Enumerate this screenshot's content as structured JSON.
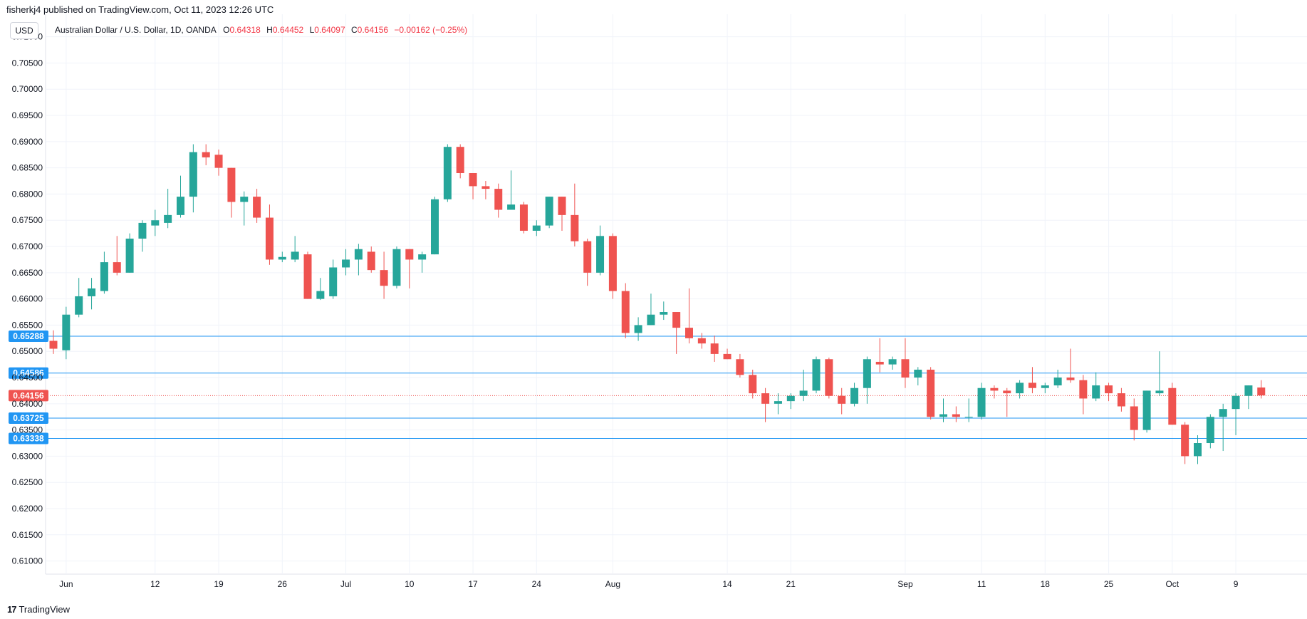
{
  "publisher_line": "fisherkj4 published on TradingView.com, Oct 11, 2023 12:26 UTC",
  "currency_button": "USD",
  "legend": {
    "symbol": "Australian Dollar / U.S. Dollar, 1D, OANDA",
    "o_label": "O",
    "o_value": "0.64318",
    "h_label": "H",
    "h_value": "0.64452",
    "l_label": "L",
    "l_value": "0.64097",
    "c_label": "C",
    "c_value": "0.64156",
    "change": "−0.00162 (−0.25%)"
  },
  "footer": {
    "logo": "17",
    "brand": "TradingView"
  },
  "colors": {
    "up": "#26a69a",
    "down": "#ef5350",
    "hline": "#2196f3",
    "grid": "#f0f3fa",
    "last": "#ef5350"
  },
  "chart_data": {
    "type": "candlestick",
    "ylim": [
      0.6075,
      0.7143
    ],
    "y_ticks": [
      "0.71000",
      "0.70500",
      "0.70000",
      "0.69500",
      "0.69000",
      "0.68500",
      "0.68000",
      "0.67500",
      "0.67000",
      "0.66500",
      "0.66000",
      "0.65500",
      "0.65000",
      "0.64500",
      "0.64000",
      "0.63500",
      "0.63000",
      "0.62500",
      "0.62000",
      "0.61500",
      "0.61000"
    ],
    "x_labels": [
      {
        "label": "Jun",
        "index": 1
      },
      {
        "label": "12",
        "index": 8
      },
      {
        "label": "19",
        "index": 13
      },
      {
        "label": "26",
        "index": 18
      },
      {
        "label": "Jul",
        "index": 23
      },
      {
        "label": "10",
        "index": 28
      },
      {
        "label": "17",
        "index": 33
      },
      {
        "label": "24",
        "index": 38
      },
      {
        "label": "Aug",
        "index": 44
      },
      {
        "label": "14",
        "index": 53
      },
      {
        "label": "21",
        "index": 58
      },
      {
        "label": "Sep",
        "index": 67
      },
      {
        "label": "11",
        "index": 73
      },
      {
        "label": "18",
        "index": 78
      },
      {
        "label": "25",
        "index": 83
      },
      {
        "label": "Oct",
        "index": 88
      },
      {
        "label": "9",
        "index": 93
      }
    ],
    "horizontal_lines": [
      "0.65288",
      "0.64586",
      "0.63725",
      "0.63338"
    ],
    "last_price": "0.64156",
    "candles": [
      [
        0.652,
        0.654,
        0.6495,
        0.6505
      ],
      [
        0.6502,
        0.6585,
        0.6485,
        0.657
      ],
      [
        0.657,
        0.664,
        0.6565,
        0.6605
      ],
      [
        0.6605,
        0.664,
        0.658,
        0.662
      ],
      [
        0.6615,
        0.669,
        0.661,
        0.667
      ],
      [
        0.667,
        0.672,
        0.6645,
        0.665
      ],
      [
        0.665,
        0.6725,
        0.665,
        0.6715
      ],
      [
        0.6715,
        0.675,
        0.669,
        0.6745
      ],
      [
        0.674,
        0.677,
        0.672,
        0.675
      ],
      [
        0.6745,
        0.681,
        0.6735,
        0.676
      ],
      [
        0.676,
        0.6835,
        0.6755,
        0.6795
      ],
      [
        0.6795,
        0.6895,
        0.6765,
        0.688
      ],
      [
        0.688,
        0.6895,
        0.6855,
        0.687
      ],
      [
        0.6875,
        0.6885,
        0.6835,
        0.685
      ],
      [
        0.685,
        0.685,
        0.6755,
        0.6785
      ],
      [
        0.6785,
        0.6805,
        0.674,
        0.6795
      ],
      [
        0.6795,
        0.681,
        0.6745,
        0.6755
      ],
      [
        0.6755,
        0.678,
        0.6665,
        0.6675
      ],
      [
        0.6675,
        0.669,
        0.667,
        0.668
      ],
      [
        0.6675,
        0.672,
        0.667,
        0.669
      ],
      [
        0.6685,
        0.669,
        0.66,
        0.66
      ],
      [
        0.66,
        0.664,
        0.6598,
        0.6615
      ],
      [
        0.6605,
        0.6675,
        0.66,
        0.666
      ],
      [
        0.666,
        0.6695,
        0.6645,
        0.6675
      ],
      [
        0.6675,
        0.6705,
        0.6645,
        0.6695
      ],
      [
        0.669,
        0.67,
        0.665,
        0.6655
      ],
      [
        0.6655,
        0.669,
        0.66,
        0.6625
      ],
      [
        0.6625,
        0.67,
        0.662,
        0.6695
      ],
      [
        0.6695,
        0.6695,
        0.662,
        0.6675
      ],
      [
        0.6675,
        0.669,
        0.665,
        0.6685
      ],
      [
        0.6685,
        0.6795,
        0.6685,
        0.679
      ],
      [
        0.679,
        0.6895,
        0.6785,
        0.689
      ],
      [
        0.689,
        0.6895,
        0.683,
        0.684
      ],
      [
        0.684,
        0.684,
        0.679,
        0.6815
      ],
      [
        0.6815,
        0.6825,
        0.679,
        0.681
      ],
      [
        0.681,
        0.682,
        0.6755,
        0.677
      ],
      [
        0.677,
        0.6845,
        0.677,
        0.678
      ],
      [
        0.678,
        0.6785,
        0.6725,
        0.673
      ],
      [
        0.673,
        0.675,
        0.672,
        0.674
      ],
      [
        0.674,
        0.6795,
        0.6735,
        0.6795
      ],
      [
        0.6795,
        0.6795,
        0.673,
        0.676
      ],
      [
        0.676,
        0.682,
        0.67,
        0.671
      ],
      [
        0.671,
        0.6715,
        0.6625,
        0.665
      ],
      [
        0.665,
        0.674,
        0.6645,
        0.672
      ],
      [
        0.672,
        0.6725,
        0.66,
        0.6615
      ],
      [
        0.6615,
        0.663,
        0.6525,
        0.6535
      ],
      [
        0.6535,
        0.6565,
        0.652,
        0.655
      ],
      [
        0.655,
        0.661,
        0.655,
        0.657
      ],
      [
        0.657,
        0.6595,
        0.656,
        0.6575
      ],
      [
        0.6575,
        0.6575,
        0.6495,
        0.6545
      ],
      [
        0.6545,
        0.662,
        0.6515,
        0.6525
      ],
      [
        0.6525,
        0.6535,
        0.6505,
        0.6515
      ],
      [
        0.6515,
        0.653,
        0.648,
        0.6495
      ],
      [
        0.6495,
        0.6505,
        0.6485,
        0.6485
      ],
      [
        0.6485,
        0.6495,
        0.645,
        0.6455
      ],
      [
        0.6455,
        0.6465,
        0.641,
        0.642
      ],
      [
        0.642,
        0.643,
        0.6365,
        0.64
      ],
      [
        0.64,
        0.642,
        0.638,
        0.6405
      ],
      [
        0.6405,
        0.642,
        0.639,
        0.6415
      ],
      [
        0.6415,
        0.6465,
        0.6405,
        0.6425
      ],
      [
        0.6425,
        0.649,
        0.642,
        0.6485
      ],
      [
        0.6485,
        0.6488,
        0.641,
        0.6415
      ],
      [
        0.6415,
        0.643,
        0.638,
        0.64
      ],
      [
        0.64,
        0.644,
        0.6395,
        0.643
      ],
      [
        0.643,
        0.649,
        0.64,
        0.6485
      ],
      [
        0.648,
        0.6525,
        0.646,
        0.6475
      ],
      [
        0.6475,
        0.649,
        0.6465,
        0.6485
      ],
      [
        0.6485,
        0.6525,
        0.643,
        0.645
      ],
      [
        0.645,
        0.647,
        0.6435,
        0.6465
      ],
      [
        0.6465,
        0.647,
        0.637,
        0.6375
      ],
      [
        0.6375,
        0.641,
        0.6365,
        0.638
      ],
      [
        0.638,
        0.6395,
        0.6365,
        0.6375
      ],
      [
        0.6375,
        0.641,
        0.6365,
        0.6375
      ],
      [
        0.6375,
        0.644,
        0.637,
        0.643
      ],
      [
        0.643,
        0.6435,
        0.641,
        0.6425
      ],
      [
        0.6425,
        0.643,
        0.6375,
        0.642
      ],
      [
        0.642,
        0.6445,
        0.641,
        0.644
      ],
      [
        0.644,
        0.647,
        0.642,
        0.643
      ],
      [
        0.643,
        0.644,
        0.642,
        0.6435
      ],
      [
        0.6435,
        0.6465,
        0.643,
        0.645
      ],
      [
        0.645,
        0.6505,
        0.644,
        0.6445
      ],
      [
        0.6445,
        0.6455,
        0.638,
        0.641
      ],
      [
        0.641,
        0.646,
        0.6405,
        0.6435
      ],
      [
        0.6435,
        0.644,
        0.6405,
        0.642
      ],
      [
        0.642,
        0.643,
        0.6385,
        0.6395
      ],
      [
        0.6395,
        0.641,
        0.633,
        0.635
      ],
      [
        0.635,
        0.6425,
        0.6345,
        0.6425
      ],
      [
        0.642,
        0.65,
        0.6415,
        0.6425
      ],
      [
        0.643,
        0.644,
        0.636,
        0.636
      ],
      [
        0.636,
        0.6365,
        0.6285,
        0.63
      ],
      [
        0.63,
        0.634,
        0.6285,
        0.6325
      ],
      [
        0.6325,
        0.638,
        0.6315,
        0.6375
      ],
      [
        0.6375,
        0.64,
        0.631,
        0.639
      ],
      [
        0.639,
        0.642,
        0.634,
        0.6415
      ],
      [
        0.6415,
        0.6435,
        0.639,
        0.6435
      ],
      [
        0.6431,
        0.6445,
        0.641,
        0.6416
      ]
    ]
  }
}
